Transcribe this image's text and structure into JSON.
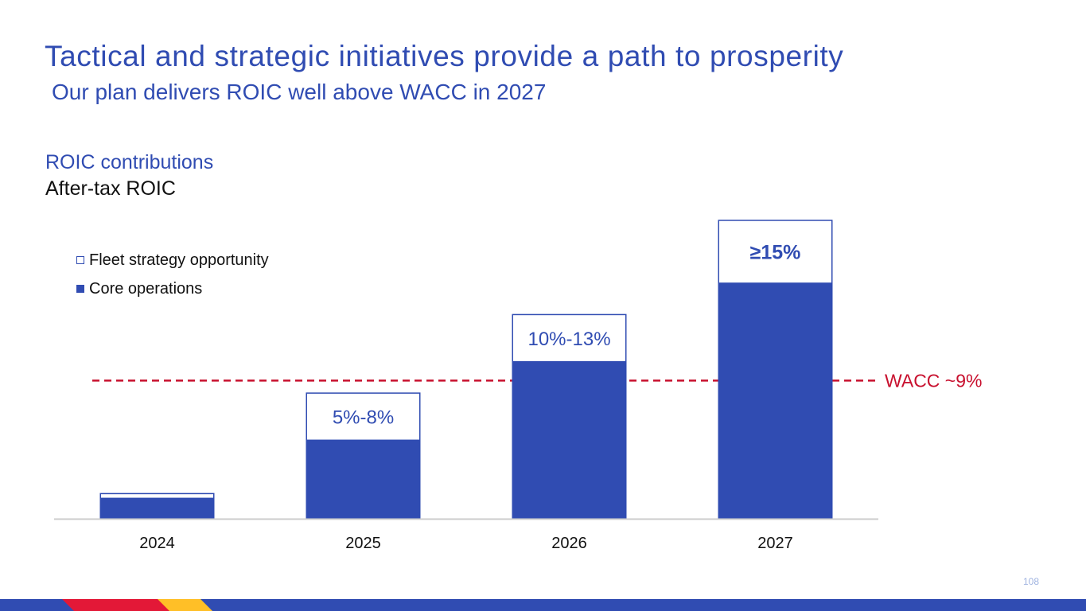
{
  "title": "Tactical and strategic initiatives provide a path to prosperity",
  "subtitle": "Our plan delivers ROIC well above WACC in 2027",
  "section_title": "ROIC contributions",
  "metric_label": "After-tax ROIC",
  "page_number": "108",
  "colors": {
    "brand_blue": "#304CB2",
    "wacc_red": "#C8102E",
    "axis": "#CCCCCC",
    "footer_red": "#E31837",
    "footer_yellow": "#FFBF27"
  },
  "chart_data": {
    "type": "bar",
    "stacked": true,
    "categories": [
      "2024",
      "2025",
      "2026",
      "2027"
    ],
    "series": [
      {
        "name": "Core operations",
        "values": [
          1.3,
          5.0,
          10.0,
          15.0
        ]
      },
      {
        "name": "Fleet strategy opportunity",
        "values": [
          0.3,
          3.0,
          3.0,
          4.0
        ]
      }
    ],
    "bar_labels": [
      "",
      "5%-8%",
      "10%-13%",
      "≥15%"
    ],
    "reference_line": {
      "label": "WACC ~9%",
      "value": 8.8
    },
    "ylim": [
      0,
      19
    ],
    "legend": [
      "Fleet strategy opportunity",
      "Core operations"
    ],
    "legend_position": "top-left",
    "xlabel": "",
    "ylabel": "",
    "grid": false
  }
}
